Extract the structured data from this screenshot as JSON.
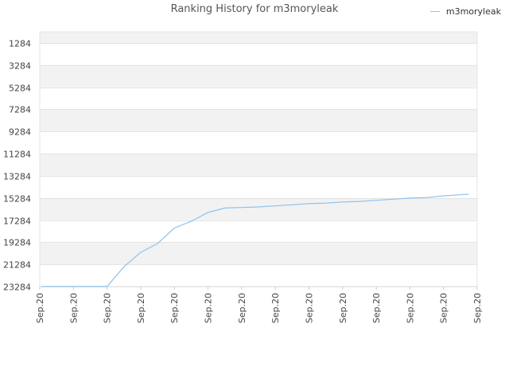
{
  "chart_data": {
    "type": "line",
    "title": "Ranking History for m3moryleak",
    "xlabel": "",
    "ylabel": "",
    "y_inverted": true,
    "ylim": [
      284,
      23284
    ],
    "y_ticks": [
      1284,
      3284,
      5284,
      7284,
      9284,
      11284,
      13284,
      15284,
      17284,
      19284,
      21284,
      23284
    ],
    "x_tick_labels": [
      "Sep.20",
      "Sep.20",
      "Sep.20",
      "Sep.20",
      "Sep.20",
      "Sep.20",
      "Sep.20",
      "Sep.20",
      "Sep.20",
      "Sep.20",
      "Sep.20",
      "Sep.20",
      "Sep.20",
      "Sep.20"
    ],
    "grid": true,
    "legend_position": "top-right",
    "series": [
      {
        "name": "m3moryleak",
        "color": "#8ec2ed",
        "x": [
          0.05,
          0.15,
          0.18,
          0.34,
          0.37,
          0.52,
          0.55,
          1.0,
          1.5,
          2.0,
          2.5,
          3.0,
          3.5,
          4.0,
          4.5,
          5.0,
          5.5,
          6.0,
          6.5,
          7.0,
          7.5,
          8.0,
          8.5,
          9.0,
          9.5,
          10.0,
          10.5,
          11.0,
          11.5,
          12.0,
          12.5,
          12.75
        ],
        "values": [
          23284,
          23284,
          23284,
          23284,
          23284,
          23284,
          23284,
          23284,
          23284,
          23284,
          21500,
          20200,
          19400,
          18000,
          17400,
          16600,
          16200,
          16150,
          16100,
          16000,
          15900,
          15800,
          15750,
          15650,
          15600,
          15500,
          15400,
          15300,
          15250,
          15100,
          15000,
          14950
        ]
      }
    ]
  }
}
